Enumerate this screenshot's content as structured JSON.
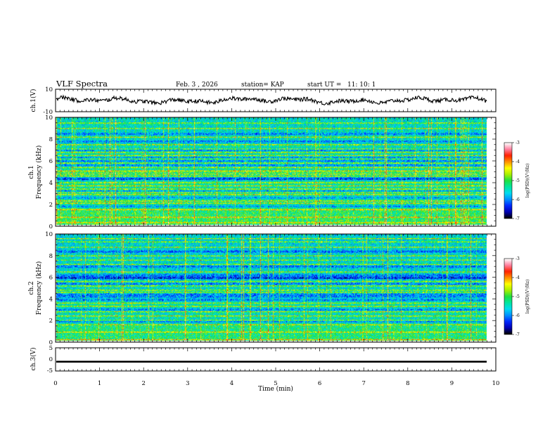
{
  "chart_data": {
    "type": "heatmap",
    "title": "VLF Spectra",
    "date": "Feb. 3 , 2026",
    "station": "station= KAP",
    "start_ut": "start UT =   11: 10: 1",
    "xlabel": "Time (min)",
    "xlim": [
      0,
      10
    ],
    "x_ticks": [
      "0",
      "1",
      "2",
      "3",
      "4",
      "5",
      "6",
      "7",
      "8",
      "9",
      "10"
    ],
    "panels": [
      {
        "name": "ch1-waveform",
        "type": "line",
        "ylabel": "ch.1(V)",
        "ylim": [
          -10,
          10
        ],
        "y_ticks": [
          "10",
          "-10"
        ]
      },
      {
        "name": "ch1-spectrogram",
        "type": "heatmap",
        "ylabel": "Frequency (kHz)",
        "channel_label": "ch.1",
        "ylim": [
          0,
          10
        ],
        "y_ticks": [
          "0",
          "2",
          "4",
          "6",
          "8",
          "10"
        ],
        "bright_bands_khz": [
          0.3,
          0.8,
          1.5,
          2.1,
          2.3,
          2.9,
          3.1,
          3.4,
          3.7,
          4.0,
          4.6,
          4.8,
          5.0,
          5.1,
          5.4,
          5.8,
          6.2,
          6.5,
          6.8,
          7.1,
          7.5,
          8.2,
          9.0,
          9.5
        ],
        "dark_bands_khz": [
          1.8,
          2.6,
          3.2,
          4.3,
          4.4,
          5.6,
          6.0,
          6.3,
          7.0,
          7.8,
          8.5
        ],
        "colorbar": {
          "label": "log(PSD)(V²/Hz)",
          "range": [
            -7,
            -3
          ],
          "ticks": [
            "-3",
            "-4",
            "-5",
            "-6",
            "-7"
          ]
        }
      },
      {
        "name": "ch2-spectrogram",
        "type": "heatmap",
        "ylabel": "Frequency (kHz)",
        "channel_label": "ch.2",
        "ylim": [
          0,
          10
        ],
        "y_ticks": [
          "0",
          "2",
          "4",
          "6",
          "8",
          "10"
        ],
        "bright_bands_khz": [
          0.2,
          0.9,
          1.6,
          2.0,
          2.4,
          2.8,
          3.3,
          3.6,
          4.6,
          4.8,
          5.2,
          5.6,
          6.5,
          7.2,
          7.6,
          8.0,
          8.8,
          9.3,
          9.6
        ],
        "dark_bands_khz": [
          1.9,
          3.0,
          3.9,
          4.2,
          4.4,
          5.4,
          5.9,
          6.0,
          6.2,
          7.0,
          8.4
        ],
        "colorbar": {
          "label": "log(PSD)(V²/Hz)",
          "range": [
            -7,
            -3
          ],
          "ticks": [
            "-3",
            "-4",
            "-5",
            "-6",
            "-7"
          ]
        }
      },
      {
        "name": "ch3-waveform",
        "type": "line",
        "ylabel": "ch.3(V)",
        "ylim": [
          -5,
          5
        ],
        "y_ticks": [
          "5",
          "0",
          "-5"
        ],
        "level_v": [
          -1.4,
          -0.6
        ]
      }
    ],
    "colormap": [
      "#000000",
      "#0000b4",
      "#0028ff",
      "#0090ff",
      "#00dcf0",
      "#00e6a0",
      "#20e040",
      "#a8f000",
      "#ffff00",
      "#ff9000",
      "#ff2000",
      "#ff80a0",
      "#ffffff"
    ]
  }
}
